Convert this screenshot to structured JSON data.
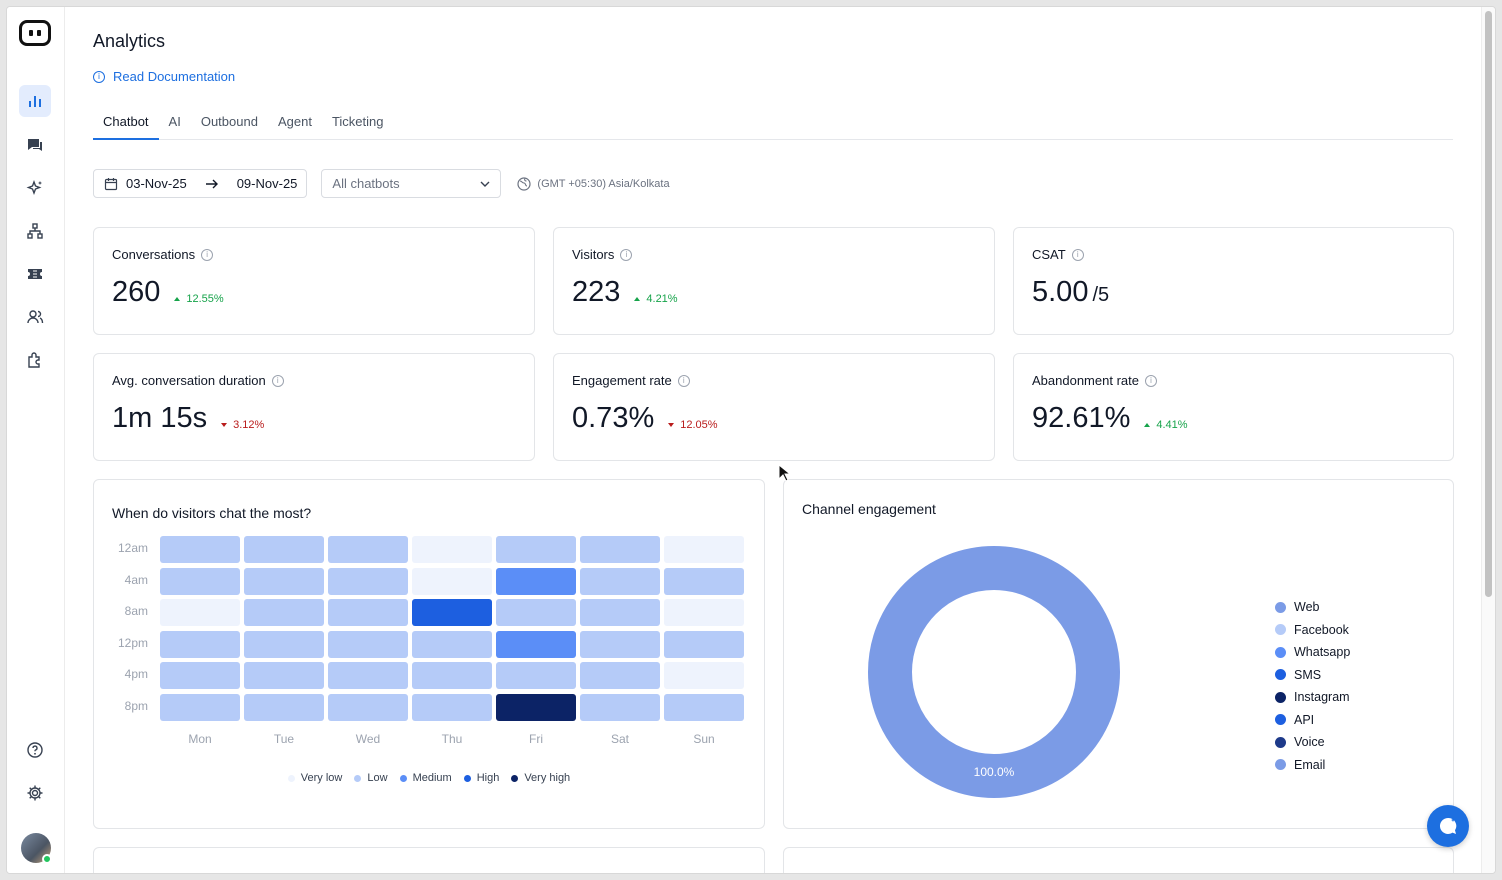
{
  "page": {
    "title": "Analytics",
    "doc_link": "Read Documentation"
  },
  "tabs": [
    "Chatbot",
    "AI",
    "Outbound",
    "Agent",
    "Ticketing"
  ],
  "filters": {
    "date_from": "03-Nov-25",
    "date_to": "09-Nov-25",
    "chatbot_select": "All chatbots",
    "timezone": "(GMT +05:30) Asia/Kolkata"
  },
  "metrics": [
    {
      "label": "Conversations",
      "value": "260",
      "suffix": "",
      "delta": "12.55%",
      "trend": "up"
    },
    {
      "label": "Visitors",
      "value": "223",
      "suffix": "",
      "delta": "4.21%",
      "trend": "up"
    },
    {
      "label": "CSAT",
      "value": "5.00",
      "suffix": "/5",
      "delta": "",
      "trend": ""
    },
    {
      "label": "Avg. conversation duration",
      "value": "1m 15s",
      "suffix": "",
      "delta": "3.12%",
      "trend": "down"
    },
    {
      "label": "Engagement rate",
      "value": "0.73%",
      "suffix": "",
      "delta": "12.05%",
      "trend": "down"
    },
    {
      "label": "Abandonment rate",
      "value": "92.61%",
      "suffix": "",
      "delta": "4.41%",
      "trend": "up"
    }
  ],
  "heatmap": {
    "title": "When do visitors chat the most?",
    "rows": [
      "12am",
      "4am",
      "8am",
      "12pm",
      "4pm",
      "8pm"
    ],
    "cols": [
      "Mon",
      "Tue",
      "Wed",
      "Thu",
      "Fri",
      "Sat",
      "Sun"
    ],
    "levels": [
      [
        1,
        1,
        1,
        0,
        1,
        1,
        0
      ],
      [
        1,
        1,
        1,
        0,
        2,
        1,
        1
      ],
      [
        0,
        1,
        1,
        3,
        1,
        1,
        0
      ],
      [
        1,
        1,
        1,
        1,
        2,
        1,
        1
      ],
      [
        1,
        1,
        1,
        1,
        1,
        1,
        0
      ],
      [
        1,
        1,
        1,
        1,
        4,
        1,
        1
      ]
    ],
    "level_colors": [
      "#eef3fd",
      "#b5cbf8",
      "#5b8ef7",
      "#1d5fe0",
      "#0c2366"
    ],
    "legend": [
      "Very low",
      "Low",
      "Medium",
      "High",
      "Very high"
    ]
  },
  "channel": {
    "title": "Channel engagement",
    "center_label": "100.0%",
    "donut_color": "#7b9be6",
    "legend": [
      {
        "name": "Web",
        "color": "#7b9be6"
      },
      {
        "name": "Facebook",
        "color": "#b5cbf8"
      },
      {
        "name": "Whatsapp",
        "color": "#5b8ef7"
      },
      {
        "name": "SMS",
        "color": "#1d5fe0"
      },
      {
        "name": "Instagram",
        "color": "#0c2366"
      },
      {
        "name": "API",
        "color": "#1d5fe0"
      },
      {
        "name": "Voice",
        "color": "#1e3a8a"
      },
      {
        "name": "Email",
        "color": "#7b9be6"
      }
    ]
  },
  "chart_data": {
    "type": "pie",
    "title": "Channel engagement",
    "categories": [
      "Web",
      "Facebook",
      "Whatsapp",
      "SMS",
      "Instagram",
      "API",
      "Voice",
      "Email"
    ],
    "values": [
      100.0,
      0,
      0,
      0,
      0,
      0,
      0,
      0
    ]
  },
  "sidebar_icons": [
    "analytics-icon",
    "chat-icon",
    "sparkles-icon",
    "hierarchy-icon",
    "ticket-icon",
    "users-icon",
    "puzzle-icon",
    "help-icon",
    "settings-icon"
  ]
}
